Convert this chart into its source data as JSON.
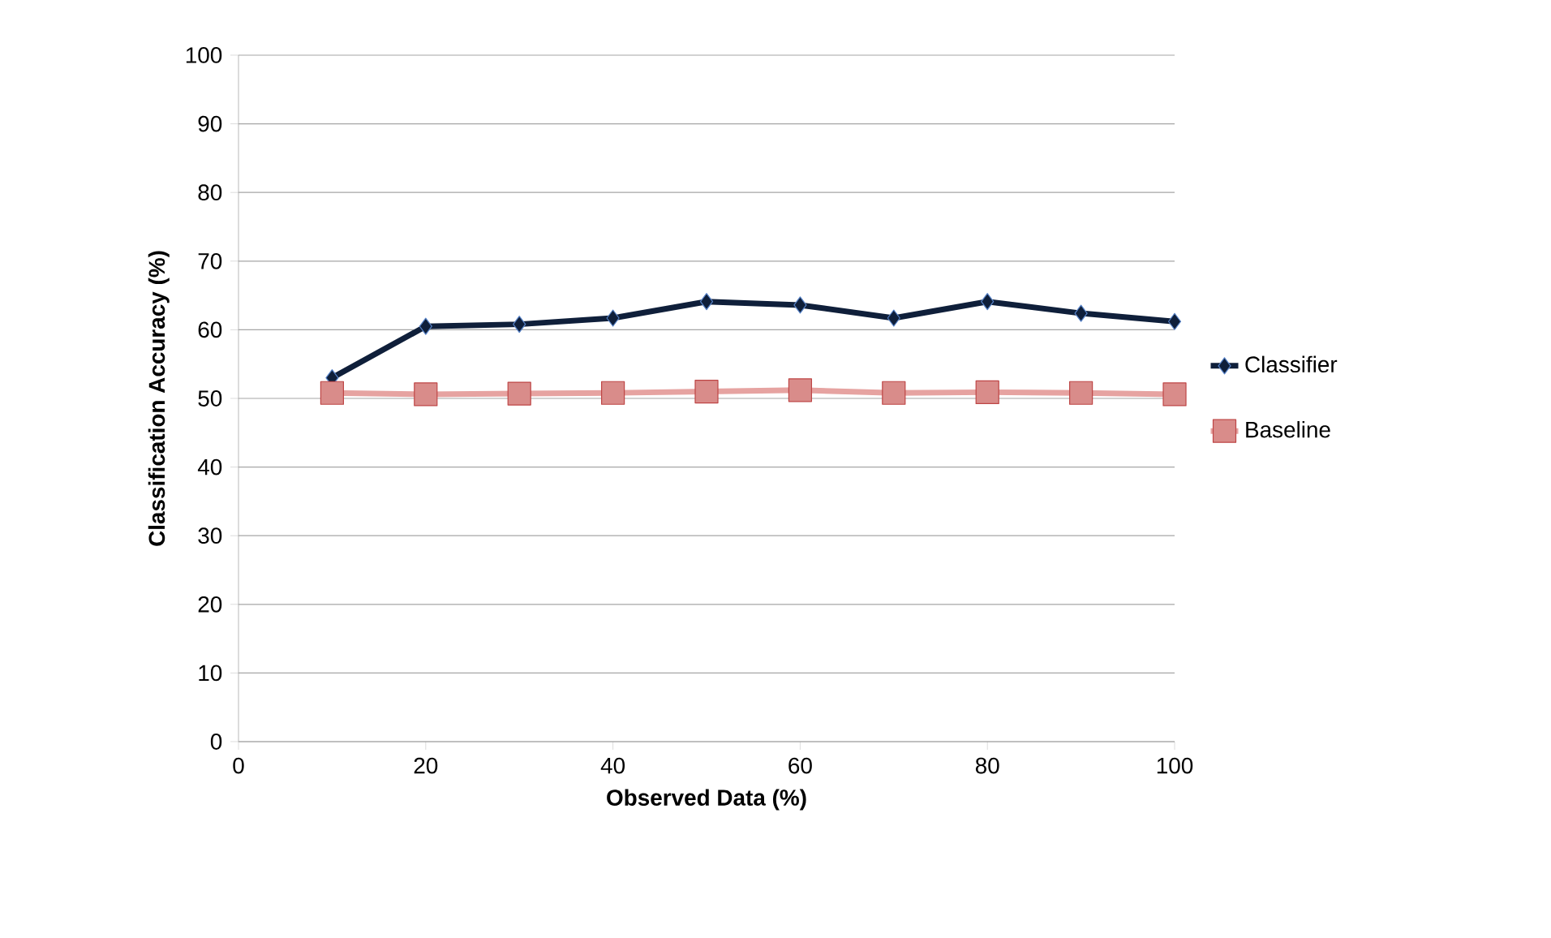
{
  "chart_data": {
    "type": "line",
    "xlabel": "Observed Data (%)",
    "ylabel": "Classification Accuracy (%)",
    "x": [
      10,
      20,
      30,
      40,
      50,
      60,
      70,
      80,
      90,
      100
    ],
    "series": [
      {
        "name": "Classifier",
        "color": "#0f1f3a",
        "marker": "diamond",
        "values": [
          53.0,
          60.5,
          60.8,
          61.7,
          64.1,
          63.6,
          61.7,
          64.1,
          62.4,
          61.2
        ]
      },
      {
        "name": "Baseline",
        "color": "#e6a3a1",
        "marker": "square",
        "values": [
          50.8,
          50.6,
          50.7,
          50.8,
          51.0,
          51.2,
          50.8,
          50.9,
          50.8,
          50.6
        ]
      }
    ],
    "xlim": [
      0,
      100
    ],
    "ylim": [
      0,
      100
    ],
    "xticks": [
      0,
      20,
      40,
      60,
      80,
      100
    ],
    "yticks": [
      0,
      10,
      20,
      30,
      40,
      50,
      60,
      70,
      80,
      90,
      100
    ],
    "grid": "y",
    "legend": "right"
  }
}
